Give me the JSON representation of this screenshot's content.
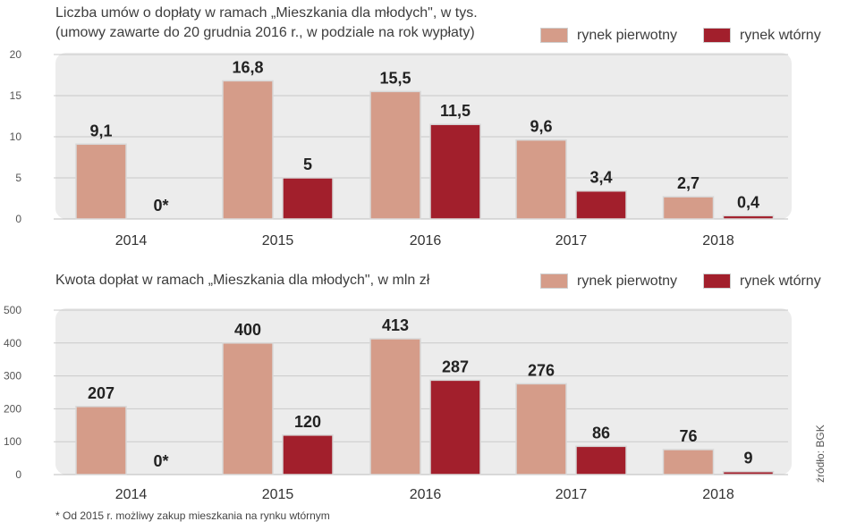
{
  "colors": {
    "primary": "#d59c89",
    "secondary": "#a21f2c",
    "plot_background": "#ececec"
  },
  "chart_data": [
    {
      "type": "bar",
      "title": "Liczba umów o dopłaty w ramach „Mieszkania dla młodych\", w tys.",
      "subtitle": "(umowy zawarte do 20 grudnia 2016 r., w podziale na rok wypłaty)",
      "categories": [
        "2014",
        "2015",
        "2016",
        "2017",
        "2018"
      ],
      "series": [
        {
          "name": "rynek pierwotny",
          "values": [
            9.1,
            16.8,
            15.5,
            9.6,
            2.7
          ],
          "labels": [
            "9,1",
            "16,8",
            "15,5",
            "9,6",
            "2,7"
          ]
        },
        {
          "name": "rynek wtórny",
          "values": [
            0,
            5,
            11.5,
            3.4,
            0.4
          ],
          "labels": [
            "0*",
            "5",
            "11,5",
            "3,4",
            "0,4"
          ]
        }
      ],
      "ylim": [
        0,
        20
      ],
      "yticks": [
        "0",
        "5",
        "10",
        "15",
        "20"
      ],
      "xlabel": "",
      "ylabel": "",
      "legend": "top-right",
      "grid": true
    },
    {
      "type": "bar",
      "title": "Kwota dopłat w ramach „Mieszkania dla młodych\", w mln zł",
      "categories": [
        "2014",
        "2015",
        "2016",
        "2017",
        "2018"
      ],
      "series": [
        {
          "name": "rynek pierwotny",
          "values": [
            207,
            400,
            413,
            276,
            76
          ],
          "labels": [
            "207",
            "400",
            "413",
            "276",
            "76"
          ]
        },
        {
          "name": "rynek wtórny",
          "values": [
            0,
            120,
            287,
            86,
            9
          ],
          "labels": [
            "0*",
            "120",
            "287",
            "86",
            "9"
          ]
        }
      ],
      "ylim": [
        0,
        500
      ],
      "yticks": [
        "0",
        "100",
        "200",
        "300",
        "400",
        "500"
      ],
      "xlabel": "",
      "ylabel": "",
      "legend": "top-right",
      "grid": true
    }
  ],
  "footnote": "* Od 2015 r. możliwy zakup mieszkania na rynku wtórnym",
  "source": "źródło: BGK"
}
